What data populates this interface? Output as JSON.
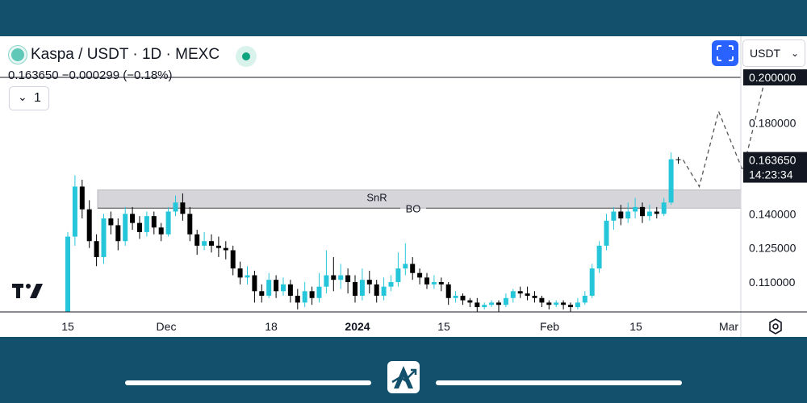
{
  "header": {
    "title": "Kaspa / USDT · 1D · MEXC",
    "currency": "USDT",
    "price_line": "0.163650  −0.000299 (−0.18%)",
    "interval": "1"
  },
  "icons": {
    "logo": "kaspa-logo-icon",
    "live": "market-live-icon",
    "fullscreen": "fullscreen-icon",
    "chevron": "chevron-down-icon",
    "tv": "tradingview-logo-icon",
    "settings": "settings-icon",
    "brand": "brand-logo-icon"
  },
  "colors": {
    "up": "#26c6da",
    "down": "#000000",
    "accent": "#2962ff",
    "frame": "#13506b",
    "zone": "#d6d6da"
  },
  "chart_data": {
    "type": "candlestick",
    "y_ticks": [
      "0.200000",
      "0.180000",
      "0.140000",
      "0.125000",
      "0.110000"
    ],
    "x_ticks": [
      "15",
      "Dec",
      "18",
      "2024",
      "15",
      "Feb",
      "15",
      "Mar"
    ],
    "current_price": "0.163650",
    "countdown": "14:23:34",
    "target_price": "0.200000",
    "zone": {
      "label": "SnR",
      "low": 0.1425,
      "high": 0.1505
    },
    "breakout": {
      "label": "BO",
      "level": 0.1425
    },
    "candles": [
      [
        0.096,
        0.13,
        0.089,
        0.132
      ],
      [
        0.13,
        0.152,
        0.126,
        0.157
      ],
      [
        0.152,
        0.142,
        0.138,
        0.155
      ],
      [
        0.142,
        0.128,
        0.125,
        0.146
      ],
      [
        0.128,
        0.121,
        0.117,
        0.131
      ],
      [
        0.121,
        0.138,
        0.118,
        0.14
      ],
      [
        0.138,
        0.135,
        0.131,
        0.141
      ],
      [
        0.135,
        0.128,
        0.124,
        0.138
      ],
      [
        0.128,
        0.14,
        0.126,
        0.143
      ],
      [
        0.14,
        0.136,
        0.133,
        0.143
      ],
      [
        0.136,
        0.132,
        0.129,
        0.139
      ],
      [
        0.132,
        0.139,
        0.13,
        0.141
      ],
      [
        0.139,
        0.134,
        0.131,
        0.141
      ],
      [
        0.134,
        0.131,
        0.128,
        0.136
      ],
      [
        0.131,
        0.141,
        0.13,
        0.143
      ],
      [
        0.141,
        0.145,
        0.139,
        0.148
      ],
      [
        0.145,
        0.14,
        0.137,
        0.149
      ],
      [
        0.14,
        0.131,
        0.128,
        0.143
      ],
      [
        0.131,
        0.126,
        0.122,
        0.133
      ],
      [
        0.126,
        0.128,
        0.124,
        0.132
      ],
      [
        0.128,
        0.126,
        0.123,
        0.131
      ],
      [
        0.126,
        0.125,
        0.121,
        0.13
      ],
      [
        0.125,
        0.124,
        0.12,
        0.128
      ],
      [
        0.124,
        0.116,
        0.113,
        0.126
      ],
      [
        0.116,
        0.112,
        0.109,
        0.119
      ],
      [
        0.112,
        0.113,
        0.109,
        0.117
      ],
      [
        0.113,
        0.106,
        0.101,
        0.115
      ],
      [
        0.106,
        0.104,
        0.101,
        0.109
      ],
      [
        0.104,
        0.111,
        0.103,
        0.114
      ],
      [
        0.111,
        0.106,
        0.103,
        0.113
      ],
      [
        0.106,
        0.109,
        0.104,
        0.112
      ],
      [
        0.109,
        0.104,
        0.101,
        0.111
      ],
      [
        0.104,
        0.101,
        0.098,
        0.107
      ],
      [
        0.101,
        0.106,
        0.099,
        0.11
      ],
      [
        0.106,
        0.103,
        0.1,
        0.108
      ],
      [
        0.103,
        0.108,
        0.101,
        0.114
      ],
      [
        0.108,
        0.113,
        0.105,
        0.124
      ],
      [
        0.113,
        0.111,
        0.106,
        0.121
      ],
      [
        0.111,
        0.113,
        0.107,
        0.118
      ],
      [
        0.113,
        0.11,
        0.105,
        0.116
      ],
      [
        0.11,
        0.104,
        0.101,
        0.113
      ],
      [
        0.104,
        0.111,
        0.102,
        0.116
      ],
      [
        0.111,
        0.109,
        0.105,
        0.115
      ],
      [
        0.109,
        0.104,
        0.101,
        0.111
      ],
      [
        0.104,
        0.108,
        0.102,
        0.112
      ],
      [
        0.108,
        0.11,
        0.106,
        0.113
      ],
      [
        0.11,
        0.116,
        0.108,
        0.123
      ],
      [
        0.116,
        0.118,
        0.113,
        0.127
      ],
      [
        0.118,
        0.114,
        0.111,
        0.121
      ],
      [
        0.114,
        0.112,
        0.109,
        0.116
      ],
      [
        0.112,
        0.109,
        0.107,
        0.114
      ],
      [
        0.109,
        0.11,
        0.107,
        0.113
      ],
      [
        0.11,
        0.109,
        0.106,
        0.112
      ],
      [
        0.109,
        0.103,
        0.1,
        0.11
      ],
      [
        0.103,
        0.104,
        0.101,
        0.106
      ],
      [
        0.104,
        0.102,
        0.1,
        0.105
      ],
      [
        0.102,
        0.101,
        0.099,
        0.103
      ],
      [
        0.101,
        0.099,
        0.097,
        0.103
      ],
      [
        0.099,
        0.1,
        0.098,
        0.101
      ],
      [
        0.1,
        0.101,
        0.099,
        0.102
      ],
      [
        0.101,
        0.1,
        0.097,
        0.102
      ],
      [
        0.1,
        0.103,
        0.099,
        0.105
      ],
      [
        0.103,
        0.106,
        0.101,
        0.107
      ],
      [
        0.106,
        0.105,
        0.103,
        0.108
      ],
      [
        0.105,
        0.104,
        0.102,
        0.108
      ],
      [
        0.104,
        0.103,
        0.101,
        0.106
      ],
      [
        0.103,
        0.101,
        0.099,
        0.104
      ],
      [
        0.101,
        0.1,
        0.098,
        0.102
      ],
      [
        0.1,
        0.101,
        0.099,
        0.102
      ],
      [
        0.101,
        0.1,
        0.098,
        0.102
      ],
      [
        0.1,
        0.099,
        0.097,
        0.101
      ],
      [
        0.099,
        0.101,
        0.098,
        0.103
      ],
      [
        0.101,
        0.104,
        0.1,
        0.106
      ],
      [
        0.104,
        0.116,
        0.103,
        0.118
      ],
      [
        0.116,
        0.126,
        0.114,
        0.128
      ],
      [
        0.126,
        0.137,
        0.124,
        0.14
      ],
      [
        0.137,
        0.141,
        0.133,
        0.143
      ],
      [
        0.141,
        0.138,
        0.135,
        0.144
      ],
      [
        0.138,
        0.141,
        0.136,
        0.145
      ],
      [
        0.141,
        0.143,
        0.138,
        0.147
      ],
      [
        0.143,
        0.139,
        0.136,
        0.145
      ],
      [
        0.139,
        0.141,
        0.137,
        0.144
      ],
      [
        0.141,
        0.14,
        0.138,
        0.143
      ],
      [
        0.14,
        0.145,
        0.139,
        0.147
      ],
      [
        0.145,
        0.164,
        0.144,
        0.167
      ],
      [
        0.164,
        0.1637,
        0.162,
        0.165
      ]
    ],
    "projection": [
      0.1637,
      0.152,
      0.185,
      0.159,
      0.2
    ]
  }
}
